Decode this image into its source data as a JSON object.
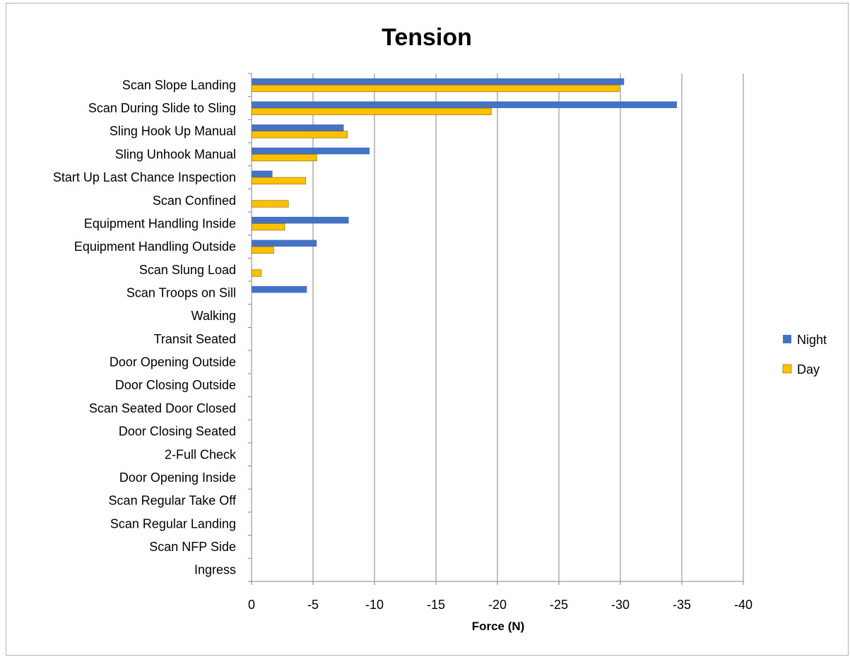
{
  "chart_data": {
    "type": "bar",
    "orientation": "horizontal",
    "title": "Tension",
    "xlabel": "Force (N)",
    "ylabel": "",
    "xlim": [
      0,
      -40
    ],
    "x_ticks": [
      "0",
      "-5",
      "-10",
      "-15",
      "-20",
      "-25",
      "-30",
      "-35",
      "-40"
    ],
    "x_tick_values": [
      0,
      -5,
      -10,
      -15,
      -20,
      -25,
      -30,
      -35,
      -40
    ],
    "grid": "vertical",
    "legend_position": "right",
    "categories": [
      "Scan Slope Landing",
      "Scan During Slide to Sling",
      "Sling Hook Up Manual",
      "Sling Unhook Manual",
      "Start Up Last Chance Inspection",
      "Scan Confined",
      "Equipment Handling Inside",
      "Equipment Handling Outside",
      "Scan Slung Load",
      "Scan Troops on Sill",
      "Walking",
      "Transit Seated",
      "Door Opening Outside",
      "Door Closing Outside",
      "Scan Seated Door Closed",
      "Door Closing Seated",
      "2-Full Check",
      "Door Opening Inside",
      "Scan Regular Take Off",
      "Scan Regular Landing",
      "Scan NFP Side",
      "Ingress"
    ],
    "series": [
      {
        "name": "Night",
        "color": "#4472C4",
        "values": [
          -30.3,
          -34.6,
          -7.5,
          -9.6,
          -1.7,
          0,
          -7.9,
          -5.3,
          0,
          -4.5,
          0,
          0,
          0,
          0,
          0,
          0,
          0,
          0,
          0,
          0,
          0,
          0
        ]
      },
      {
        "name": "Day",
        "color": "#FFC000",
        "values": [
          -29.9,
          -19.5,
          -7.8,
          -5.3,
          -4.4,
          -3.0,
          -2.7,
          -1.8,
          -0.8,
          0,
          0,
          0,
          0,
          0,
          0,
          0,
          0,
          0,
          0,
          0,
          0,
          0
        ]
      }
    ]
  }
}
